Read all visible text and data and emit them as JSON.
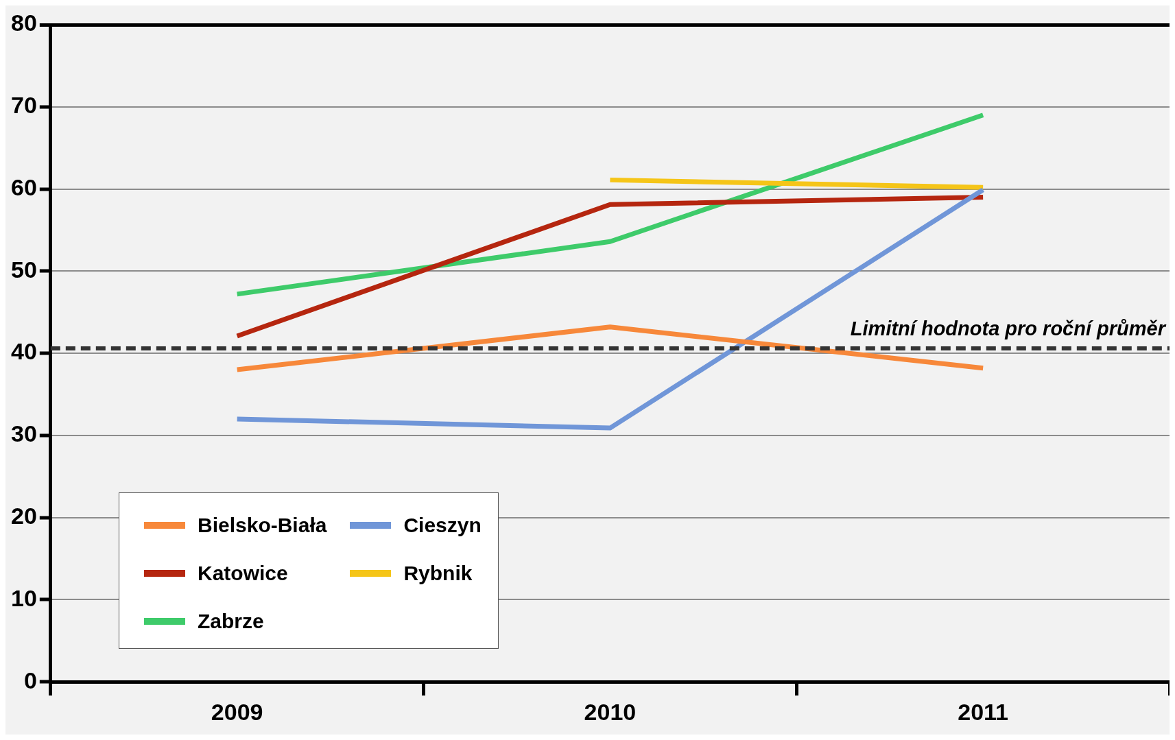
{
  "chart_data": {
    "type": "line",
    "categories": [
      "2009",
      "2010",
      "2011"
    ],
    "series": [
      {
        "name": "Bielsko-Biała",
        "color": "#f7883a",
        "values": [
          38,
          43.2,
          38.2
        ]
      },
      {
        "name": "Cieszyn",
        "color": "#7096d8",
        "values": [
          32,
          30.9,
          59.9
        ]
      },
      {
        "name": "Katowice",
        "color": "#b5260f",
        "values": [
          42.1,
          58.1,
          59
        ]
      },
      {
        "name": "Rybnik",
        "color": "#f5c518",
        "values": [
          null,
          61.1,
          60.2
        ]
      },
      {
        "name": "Zabrze",
        "color": "#3ecb6a",
        "values": [
          47.2,
          53.6,
          69
        ]
      }
    ],
    "ylim": [
      0,
      80
    ],
    "yticks": [
      0,
      10,
      20,
      30,
      40,
      50,
      60,
      70,
      80
    ],
    "grid": "y",
    "legend": "bottom left",
    "marker": "none",
    "line_style": "solid",
    "ref_lines": [
      {
        "axis": "y",
        "value": 40.6,
        "label": "Limitní hodnota pro roční průměr",
        "color": "#333333",
        "line_style": "dashed"
      }
    ]
  }
}
